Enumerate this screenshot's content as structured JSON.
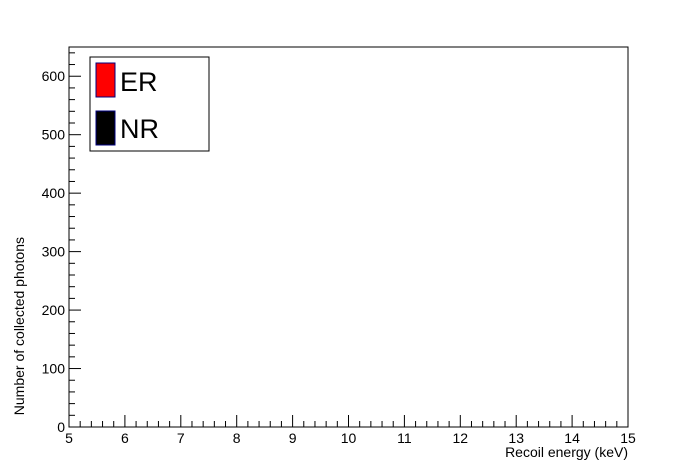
{
  "chart_data": {
    "type": "scatter",
    "title": "",
    "xlabel": "Recoil energy (keV)",
    "ylabel": "Number of collected photons",
    "xlim": [
      5,
      15
    ],
    "ylim": [
      0,
      650
    ],
    "x_ticks": [
      "5",
      "6",
      "7",
      "8",
      "9",
      "10",
      "11",
      "12",
      "13",
      "14",
      "15"
    ],
    "y_ticks": [
      "0",
      "100",
      "200",
      "300",
      "400",
      "500",
      "600"
    ],
    "grid": false,
    "legend_position": "top-left",
    "series": [
      {
        "name": "ER",
        "color": "#ff0000",
        "points": []
      },
      {
        "name": "NR",
        "color": "#000000",
        "points": []
      }
    ]
  }
}
